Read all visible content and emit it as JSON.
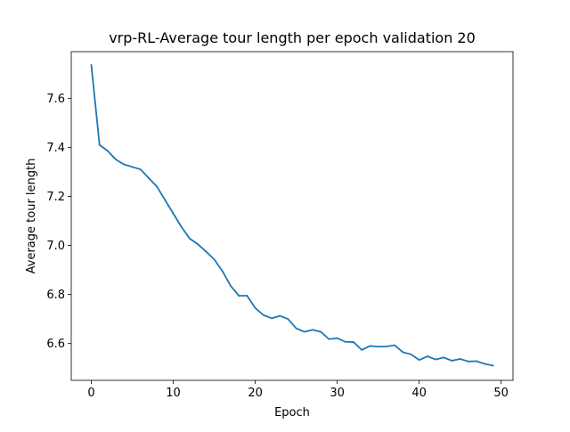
{
  "chart_data": {
    "type": "line",
    "title": "vrp-RL-Average tour length per epoch validation 20",
    "xlabel": "Epoch",
    "ylabel": "Average tour length",
    "xlim": [
      -2.45,
      51.45
    ],
    "ylim": [
      6.45,
      7.79
    ],
    "xticks": [
      0,
      10,
      20,
      30,
      40,
      50
    ],
    "yticks": [
      6.6,
      6.8,
      7.0,
      7.2,
      7.4,
      7.6
    ],
    "xtick_labels": [
      "0",
      "10",
      "20",
      "30",
      "40",
      "50"
    ],
    "ytick_labels": [
      "6.6",
      "6.8",
      "7.0",
      "7.2",
      "7.4",
      "7.6"
    ],
    "grid": false,
    "series": [
      {
        "color": "#1f77b4",
        "x": [
          0,
          1,
          2,
          3,
          4,
          5,
          6,
          7,
          8,
          9,
          10,
          11,
          12,
          13,
          14,
          15,
          16,
          17,
          18,
          19,
          20,
          21,
          22,
          23,
          24,
          25,
          26,
          27,
          28,
          29,
          30,
          31,
          32,
          33,
          34,
          35,
          36,
          37,
          38,
          39,
          40,
          41,
          42,
          43,
          44,
          45,
          46,
          47,
          48,
          49
        ],
        "y": [
          7.735,
          7.41,
          7.385,
          7.35,
          7.33,
          7.32,
          7.31,
          7.275,
          7.24,
          7.185,
          7.13,
          7.075,
          7.028,
          7.005,
          6.975,
          6.943,
          6.895,
          6.835,
          6.795,
          6.795,
          6.745,
          6.716,
          6.703,
          6.713,
          6.7,
          6.662,
          6.648,
          6.656,
          6.648,
          6.618,
          6.622,
          6.607,
          6.606,
          6.574,
          6.59,
          6.587,
          6.588,
          6.593,
          6.565,
          6.556,
          6.533,
          6.548,
          6.535,
          6.543,
          6.53,
          6.537,
          6.527,
          6.528,
          6.517,
          6.51
        ]
      }
    ]
  }
}
